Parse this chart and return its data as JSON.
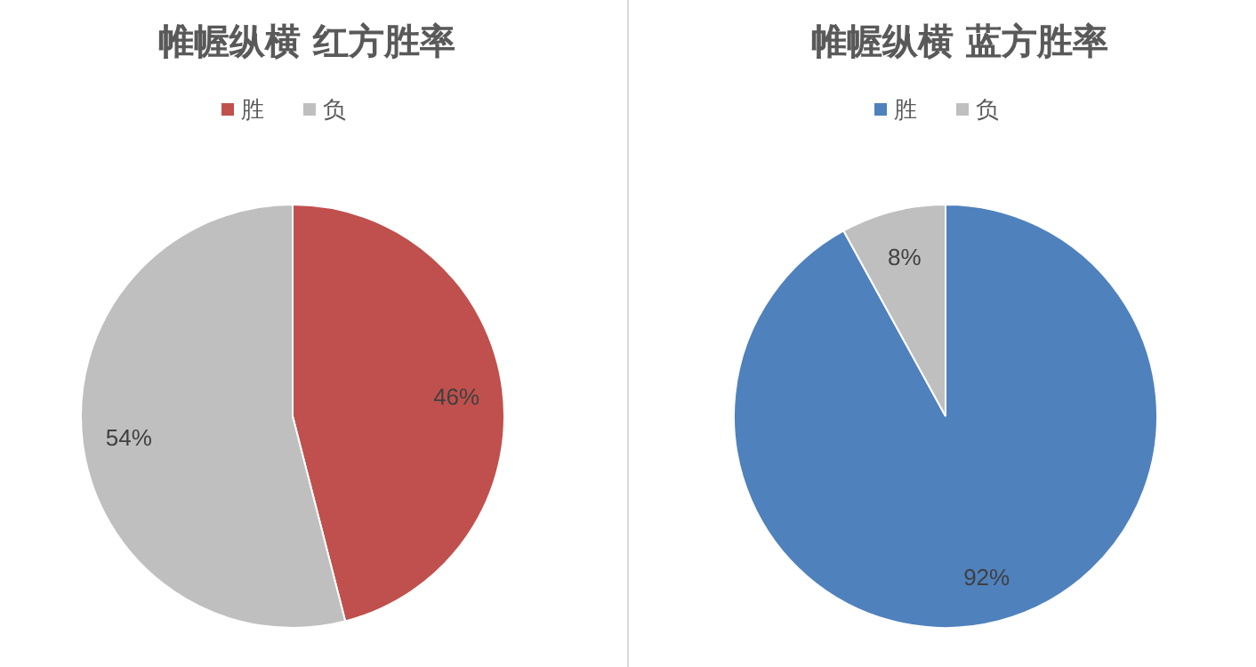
{
  "chart_data": [
    {
      "type": "pie",
      "title": "帷幄纵横 红方胜率",
      "categories": [
        "胜",
        "负"
      ],
      "values": [
        46,
        54
      ],
      "colors": [
        "#c0504d",
        "#bfbfbf"
      ],
      "value_labels": [
        "46%",
        "54%"
      ],
      "legend": "top"
    },
    {
      "type": "pie",
      "title": "帷幄纵横 蓝方胜率",
      "categories": [
        "胜",
        "负"
      ],
      "values": [
        92,
        8
      ],
      "colors": [
        "#4f81bd",
        "#bfbfbf"
      ],
      "value_labels": [
        "92%",
        "8%"
      ],
      "legend": "top"
    }
  ]
}
